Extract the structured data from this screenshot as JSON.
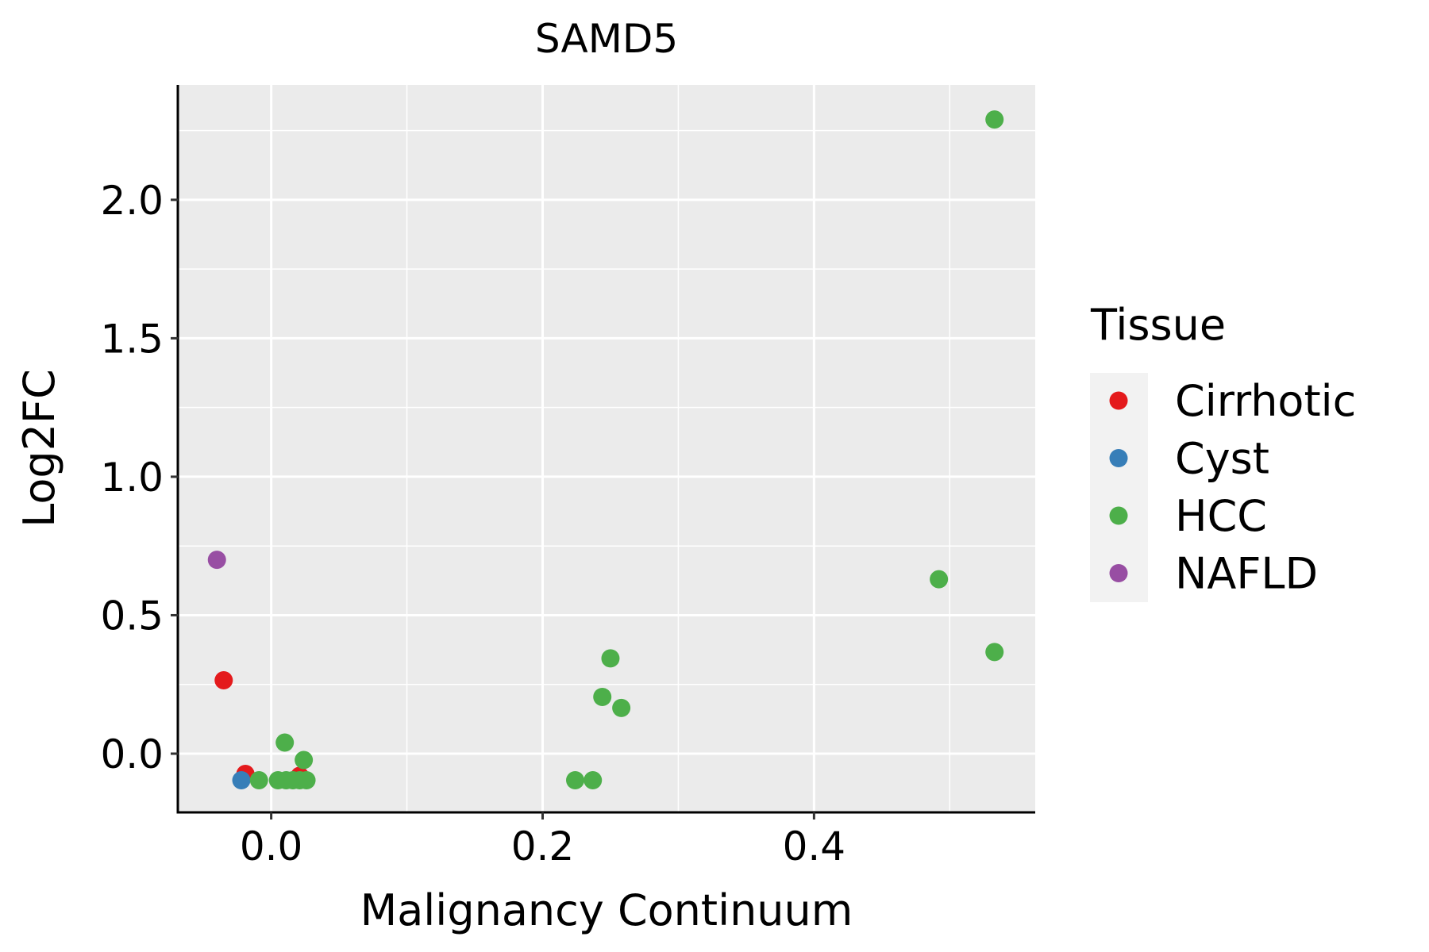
{
  "chart_data": {
    "type": "scatter",
    "title": "SAMD5",
    "xlabel": "Malignancy Continuum",
    "ylabel": "Log2FC",
    "xlim": [
      -0.0688,
      0.563
    ],
    "ylim": [
      -0.212,
      2.415
    ],
    "xticks": [
      0.0,
      0.2,
      0.4
    ],
    "xtick_labels": [
      "0.0",
      "0.2",
      "0.4"
    ],
    "yticks": [
      0.0,
      0.5,
      1.0,
      1.5,
      2.0
    ],
    "ytick_labels": [
      "0.0",
      "0.5",
      "1.0",
      "1.5",
      "2.0"
    ],
    "grid": true,
    "legend": {
      "title": "Tissue",
      "placement": "right",
      "entries": [
        "Cirrhotic",
        "Cyst",
        "HCC",
        "NAFLD"
      ]
    },
    "colors": {
      "Cirrhotic": "#E41A1C",
      "Cyst": "#377EB8",
      "HCC": "#4DAF4A",
      "NAFLD": "#984EA3"
    },
    "series": [
      {
        "name": "Cirrhotic",
        "points": [
          [
            -0.035,
            0.265
          ],
          [
            -0.019,
            -0.073
          ],
          [
            0.021,
            -0.08
          ]
        ]
      },
      {
        "name": "Cyst",
        "points": [
          [
            -0.022,
            -0.096
          ]
        ]
      },
      {
        "name": "HCC",
        "points": [
          [
            0.533,
            2.29
          ],
          [
            0.492,
            0.63
          ],
          [
            0.533,
            0.367
          ],
          [
            0.25,
            0.344
          ],
          [
            0.244,
            0.205
          ],
          [
            0.258,
            0.165
          ],
          [
            0.224,
            -0.096
          ],
          [
            0.237,
            -0.096
          ],
          [
            0.01,
            0.04
          ],
          [
            0.024,
            -0.023
          ],
          [
            -0.009,
            -0.096
          ],
          [
            0.005,
            -0.096
          ],
          [
            0.011,
            -0.096
          ],
          [
            0.016,
            -0.096
          ],
          [
            0.021,
            -0.096
          ],
          [
            0.026,
            -0.096
          ]
        ]
      },
      {
        "name": "NAFLD",
        "points": [
          [
            -0.04,
            0.7
          ]
        ]
      }
    ]
  }
}
